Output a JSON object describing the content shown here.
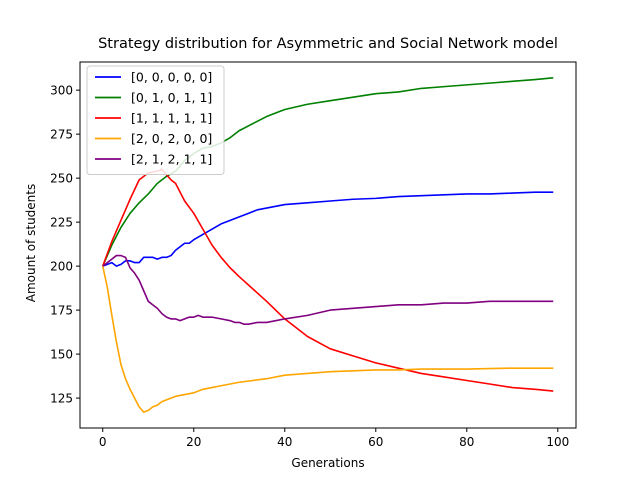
{
  "chart_data": {
    "type": "line",
    "title": "Strategy distribution for Asymmetric and Social Network model",
    "xlabel": "Generations",
    "ylabel": "Amount of students",
    "xlim": [
      -5,
      104
    ],
    "ylim": [
      108,
      316
    ],
    "xticks": [
      0,
      20,
      40,
      60,
      80,
      100
    ],
    "yticks": [
      125,
      150,
      175,
      200,
      225,
      250,
      275,
      300
    ],
    "grid": false,
    "legend_position": "top-left",
    "series": [
      {
        "name": "[0, 0, 0, 0, 0]",
        "color": "#0000ff",
        "x": [
          0,
          1,
          2,
          3,
          4,
          5,
          6,
          7,
          8,
          9,
          10,
          11,
          12,
          13,
          14,
          15,
          16,
          17,
          18,
          19,
          20,
          22,
          24,
          26,
          28,
          30,
          32,
          34,
          36,
          38,
          40,
          45,
          50,
          55,
          60,
          65,
          70,
          75,
          80,
          85,
          90,
          95,
          99
        ],
        "y": [
          200,
          201,
          202,
          200,
          201,
          203,
          203,
          202,
          202,
          205,
          205,
          205,
          204,
          205,
          205,
          206,
          209,
          211,
          213,
          213,
          215,
          218,
          221,
          224,
          226,
          228,
          230,
          232,
          233,
          234,
          235,
          236,
          237,
          238,
          238.5,
          239.5,
          240,
          240.5,
          241,
          241,
          241.5,
          242,
          242
        ]
      },
      {
        "name": "[0, 1, 0, 1, 1]",
        "color": "#008000",
        "x": [
          0,
          2,
          4,
          6,
          8,
          10,
          12,
          14,
          16,
          18,
          20,
          22,
          24,
          26,
          28,
          30,
          33,
          36,
          40,
          45,
          50,
          55,
          60,
          65,
          70,
          75,
          80,
          85,
          90,
          95,
          99
        ],
        "y": [
          200,
          212,
          222,
          230,
          236,
          241,
          247,
          251,
          254,
          260,
          264,
          267,
          268,
          270,
          273,
          277,
          281,
          285,
          289,
          292,
          294,
          296,
          298,
          299,
          301,
          302,
          303,
          304,
          305,
          306,
          307
        ]
      },
      {
        "name": "[1, 1, 1, 1, 1]",
        "color": "#ff0000",
        "x": [
          0,
          2,
          4,
          6,
          8,
          10,
          12,
          13,
          14,
          15,
          16,
          18,
          20,
          22,
          24,
          26,
          28,
          30,
          33,
          36,
          40,
          45,
          50,
          55,
          60,
          65,
          70,
          75,
          80,
          85,
          90,
          95,
          99
        ],
        "y": [
          200,
          214,
          226,
          238,
          249,
          253,
          254,
          255,
          252,
          249,
          247,
          237,
          230,
          221,
          212,
          205,
          199,
          194,
          187,
          180,
          170,
          160,
          153,
          149,
          145,
          142,
          139,
          137,
          135,
          133,
          131,
          130,
          129
        ]
      },
      {
        "name": "[2, 0, 2, 0, 0]",
        "color": "#ffa500",
        "x": [
          0,
          1,
          2,
          3,
          4,
          5,
          6,
          7,
          8,
          9,
          10,
          11,
          12,
          13,
          14,
          15,
          16,
          18,
          20,
          22,
          24,
          26,
          28,
          30,
          33,
          36,
          40,
          45,
          50,
          55,
          60,
          65,
          70,
          75,
          80,
          85,
          90,
          95,
          99
        ],
        "y": [
          200,
          188,
          172,
          157,
          144,
          136,
          130,
          125,
          120,
          117,
          118,
          120,
          121,
          123,
          124,
          125,
          126,
          127,
          128,
          130,
          131,
          132,
          133,
          134,
          135,
          136,
          138,
          139,
          140,
          140.5,
          141,
          141,
          141.5,
          141.5,
          141.5,
          141.8,
          142,
          142,
          142
        ]
      },
      {
        "name": "[2, 1, 2, 1, 1]",
        "color": "#800080",
        "x": [
          0,
          1,
          2,
          3,
          4,
          5,
          6,
          7,
          8,
          9,
          10,
          11,
          12,
          13,
          14,
          15,
          16,
          17,
          18,
          19,
          20,
          21,
          22,
          24,
          26,
          28,
          29,
          30,
          31,
          32,
          34,
          36,
          38,
          40,
          45,
          50,
          55,
          60,
          65,
          70,
          75,
          80,
          85,
          90,
          95,
          99
        ],
        "y": [
          200,
          202,
          204,
          206,
          206,
          205,
          199,
          196,
          192,
          186,
          180,
          178,
          176,
          173,
          171,
          170,
          170,
          169,
          170,
          171,
          171,
          172,
          171,
          171,
          170,
          169,
          168,
          168,
          167,
          167,
          168,
          168,
          169,
          170,
          172,
          175,
          176,
          177,
          178,
          178,
          179,
          179,
          180,
          180,
          180,
          180
        ]
      }
    ]
  }
}
